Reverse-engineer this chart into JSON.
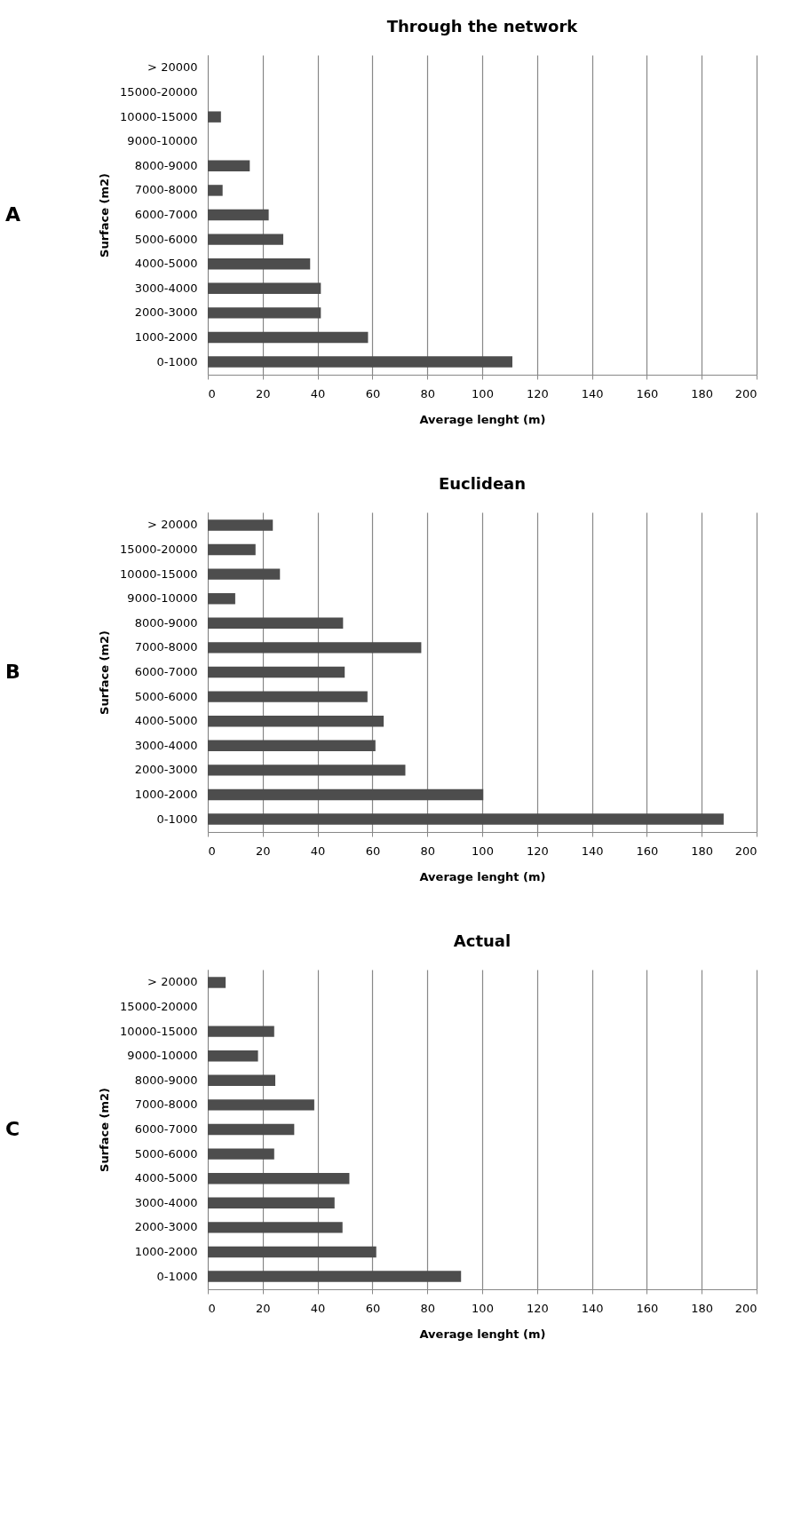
{
  "chart_data": [
    {
      "type": "bar",
      "orientation": "horizontal",
      "title": "Through the network",
      "xlabel": "Average lenght (m)",
      "ylabel": "Surface (m2)",
      "annotations": [
        "A"
      ],
      "categories": [
        "> 20000",
        "15000-20000",
        "10000-15000",
        "9000-10000",
        "8000-9000",
        "7000-8000",
        "6000-7000",
        "5000-6000",
        "4000-5000",
        "3000-4000",
        "2000-3000",
        "1000-2000",
        "0-1000"
      ],
      "values": [
        null,
        null,
        4.8,
        null,
        15.3,
        5.4,
        22.2,
        27.5,
        37.3,
        41.2,
        41.2,
        58.4,
        111
      ],
      "color": "#4d4d4d",
      "xlim": [
        0,
        200
      ],
      "xticks": [
        0,
        20,
        40,
        60,
        80,
        100,
        120,
        140,
        160,
        180,
        200
      ],
      "grid": "x"
    },
    {
      "type": "bar",
      "orientation": "horizontal",
      "title": "Euclidean",
      "xlabel": "Average lenght (m)",
      "ylabel": "Surface (m2)",
      "annotations": [
        "B"
      ],
      "categories": [
        "> 20000",
        "15000-20000",
        "10000-15000",
        "9000-10000",
        "8000-9000",
        "7000-8000",
        "6000-7000",
        "5000-6000",
        "4000-5000",
        "3000-4000",
        "2000-3000",
        "1000-2000",
        "0-1000"
      ],
      "values": [
        23.7,
        17.4,
        26.3,
        10,
        49.3,
        77.8,
        49.9,
        58.2,
        64.1,
        61.1,
        72,
        100.4,
        188
      ],
      "color": "#4d4d4d",
      "xlim": [
        0,
        200
      ],
      "xticks": [
        0,
        20,
        40,
        60,
        80,
        100,
        120,
        140,
        160,
        180,
        200
      ],
      "grid": "x"
    },
    {
      "type": "bar",
      "orientation": "horizontal",
      "title": "Actual",
      "xlabel": "Average lenght (m)",
      "ylabel": "Surface (m2)",
      "annotations": [
        "C"
      ],
      "categories": [
        "> 20000",
        "15000-20000",
        "10000-15000",
        "9000-10000",
        "8000-9000",
        "7000-8000",
        "6000-7000",
        "5000-6000",
        "4000-5000",
        "3000-4000",
        "2000-3000",
        "1000-2000",
        "0-1000"
      ],
      "values": [
        6.5,
        null,
        24.2,
        18.3,
        24.6,
        38.8,
        31.5,
        24.2,
        51.6,
        46.2,
        49.1,
        61.4,
        92.3
      ],
      "color": "#4d4d4d",
      "xlim": [
        0,
        200
      ],
      "xticks": [
        0,
        20,
        40,
        60,
        80,
        100,
        120,
        140,
        160,
        180,
        200
      ],
      "grid": "x"
    }
  ]
}
